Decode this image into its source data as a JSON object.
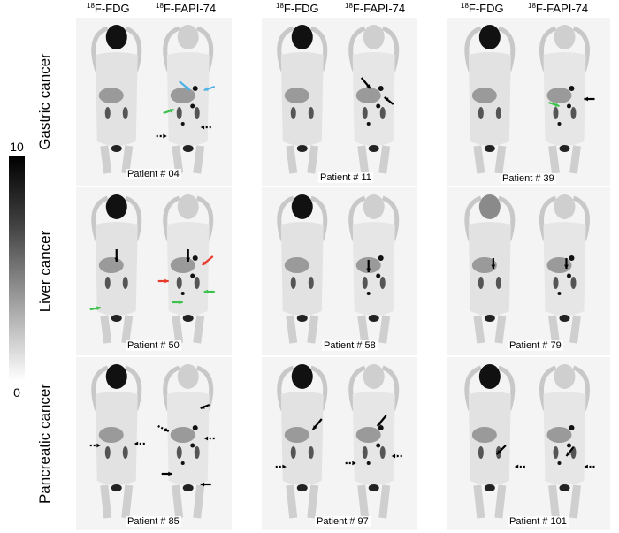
{
  "colorbar": {
    "max_label": "10",
    "min_label": "0",
    "gradient_top": "#000000",
    "gradient_bottom": "#ffffff"
  },
  "rows": [
    {
      "label": "Gastric cancer"
    },
    {
      "label": "Liver cancer"
    },
    {
      "label": "Pancreatic cancer"
    }
  ],
  "column_headers": [
    {
      "iso": "18",
      "tracer": "F-FDG"
    },
    {
      "iso": "18",
      "tracer": "F-FAPI-74"
    },
    {
      "iso": "18",
      "tracer": "F-FDG"
    },
    {
      "iso": "18",
      "tracer": "F-FAPI-74"
    },
    {
      "iso": "18",
      "tracer": "F-FDG"
    },
    {
      "iso": "18",
      "tracer": "F-FAPI-74"
    }
  ],
  "patients": [
    {
      "label": "Patient # 04"
    },
    {
      "label": "Patient # 11"
    },
    {
      "label": "Patient # 39"
    },
    {
      "label": "Patient # 50"
    },
    {
      "label": "Patient # 58"
    },
    {
      "label": "Patient # 79"
    },
    {
      "label": "Patient # 85"
    },
    {
      "label": "Patient # 97"
    },
    {
      "label": "Patient # 101"
    }
  ],
  "arrow_colors": {
    "black": "#000000",
    "blue": "#4fb3e8",
    "green": "#3cc24a",
    "red": "#e83a2a"
  }
}
